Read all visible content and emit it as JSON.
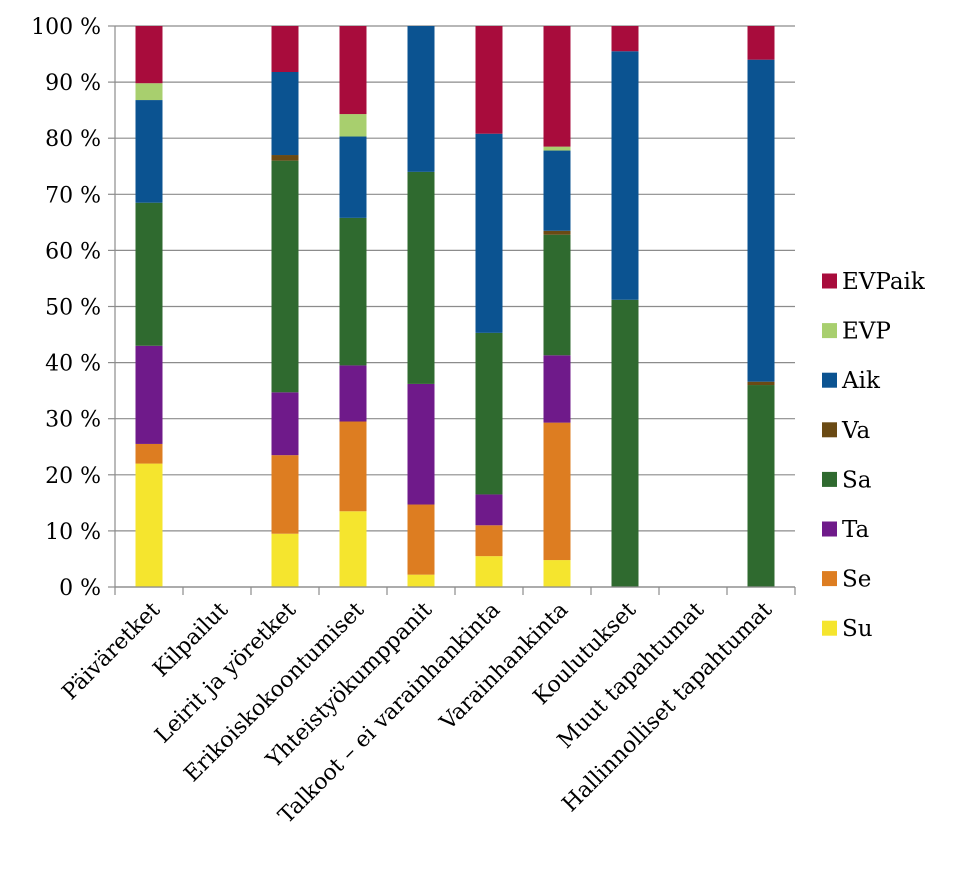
{
  "chart_data": {
    "type": "bar",
    "stacked": true,
    "percent_stacked": true,
    "title": "",
    "xlabel": "",
    "ylabel": "",
    "ylim": [
      0,
      100
    ],
    "y_ticks": [
      "0 %",
      "10 %",
      "20 %",
      "30 %",
      "40 %",
      "50 %",
      "60 %",
      "70 %",
      "80 %",
      "90 %",
      "100 %"
    ],
    "grid": "horizontal",
    "legend_position": "right",
    "categories": [
      "Päiväretket",
      "Kilpailut",
      "Leirit ja yöretket",
      "Erikoiskokoontumiset",
      "Yhteistyökumppanit",
      "Talkoot – ei varainhankinta",
      "Varainhankinta",
      "Koulutukset",
      "Muut tapahtumat",
      "Hallinnolliset tapahtumat"
    ],
    "series": [
      {
        "name": "Su",
        "color": "#f5e52e",
        "values": [
          22,
          0,
          9.5,
          13.5,
          2.2,
          5.5,
          4.8,
          0,
          0,
          0
        ]
      },
      {
        "name": "Se",
        "color": "#dd7d21",
        "values": [
          3.5,
          0,
          14,
          16,
          12.5,
          5.5,
          24.5,
          0,
          0,
          0
        ]
      },
      {
        "name": "Ta",
        "color": "#6f1a8a",
        "values": [
          17.5,
          0,
          11.2,
          10,
          21.5,
          5.5,
          12,
          0,
          0,
          0
        ]
      },
      {
        "name": "Sa",
        "color": "#2f6a2f",
        "values": [
          25.5,
          0,
          41.3,
          26.3,
          37.8,
          28.8,
          21.5,
          51.2,
          0,
          36
        ]
      },
      {
        "name": "Va",
        "color": "#6a4a14",
        "values": [
          0,
          0,
          1,
          0,
          0,
          0,
          0.7,
          0,
          0,
          0.6
        ]
      },
      {
        "name": "Aik",
        "color": "#0b5391",
        "values": [
          18.3,
          0,
          14.8,
          14.5,
          26,
          35.5,
          14.3,
          44.3,
          0,
          57.4
        ]
      },
      {
        "name": "EVP",
        "color": "#a8cf6e",
        "values": [
          3,
          0,
          0,
          4,
          0,
          0,
          0.7,
          0,
          0,
          0
        ]
      },
      {
        "name": "EVPaik",
        "color": "#a80c3c",
        "values": [
          10.2,
          0,
          8.2,
          15.7,
          0,
          19.2,
          21.5,
          4.5,
          0,
          6
        ]
      }
    ],
    "legend_order": [
      "EVPaik",
      "EVP",
      "Aik",
      "Va",
      "Sa",
      "Ta",
      "Se",
      "Su"
    ]
  }
}
